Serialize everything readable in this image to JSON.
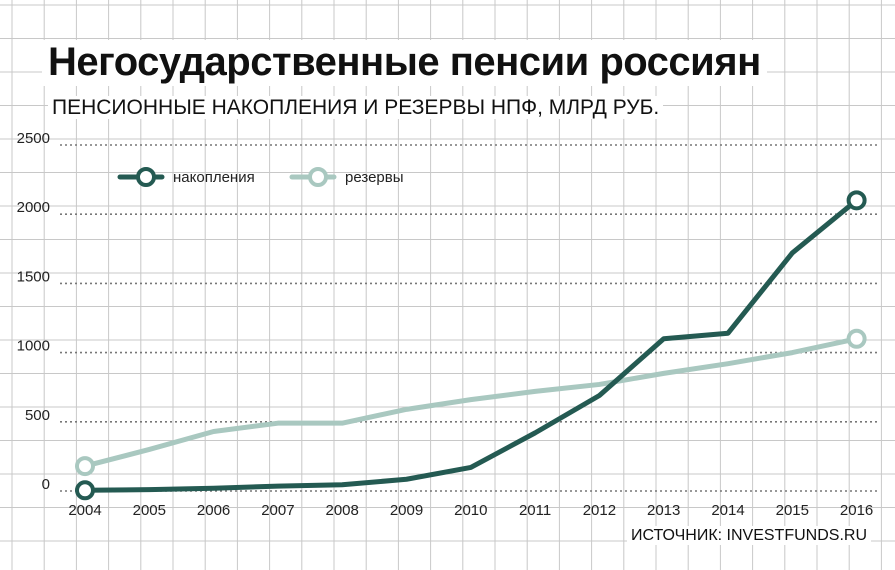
{
  "header": {
    "title": "Негосударственные пенсии россиян",
    "subtitle": "ПЕНСИОННЫЕ НАКОПЛЕНИЯ И РЕЗЕРВЫ НПФ, МЛРД РУБ."
  },
  "footer": {
    "source": "ИСТОЧНИК: INVESTFUNDS.RU"
  },
  "colors": {
    "accumulations": "#245a52",
    "reserves": "#a9c8c0",
    "grid": "#c8c8c8",
    "hgrid_dotted": "#777777"
  },
  "chart_data": {
    "type": "line",
    "title": "",
    "xlabel": "",
    "ylabel": "",
    "x": [
      "2004",
      "2005",
      "2006",
      "2007",
      "2008",
      "2009",
      "2010",
      "2011",
      "2012",
      "2013",
      "2014",
      "2015",
      "2016"
    ],
    "ylim": [
      0,
      2500
    ],
    "yticks": [
      "0",
      "500",
      "1000",
      "1500",
      "2000",
      "2500"
    ],
    "legend_position": "top-left",
    "series": [
      {
        "name": "накопления",
        "values": [
          5,
          10,
          20,
          35,
          45,
          85,
          170,
          420,
          690,
          1100,
          1140,
          1720,
          2100
        ]
      },
      {
        "name": "резервы",
        "values": [
          180,
          300,
          430,
          490,
          490,
          590,
          660,
          720,
          770,
          850,
          920,
          1000,
          1100
        ]
      }
    ],
    "endpoint_markers": true
  }
}
